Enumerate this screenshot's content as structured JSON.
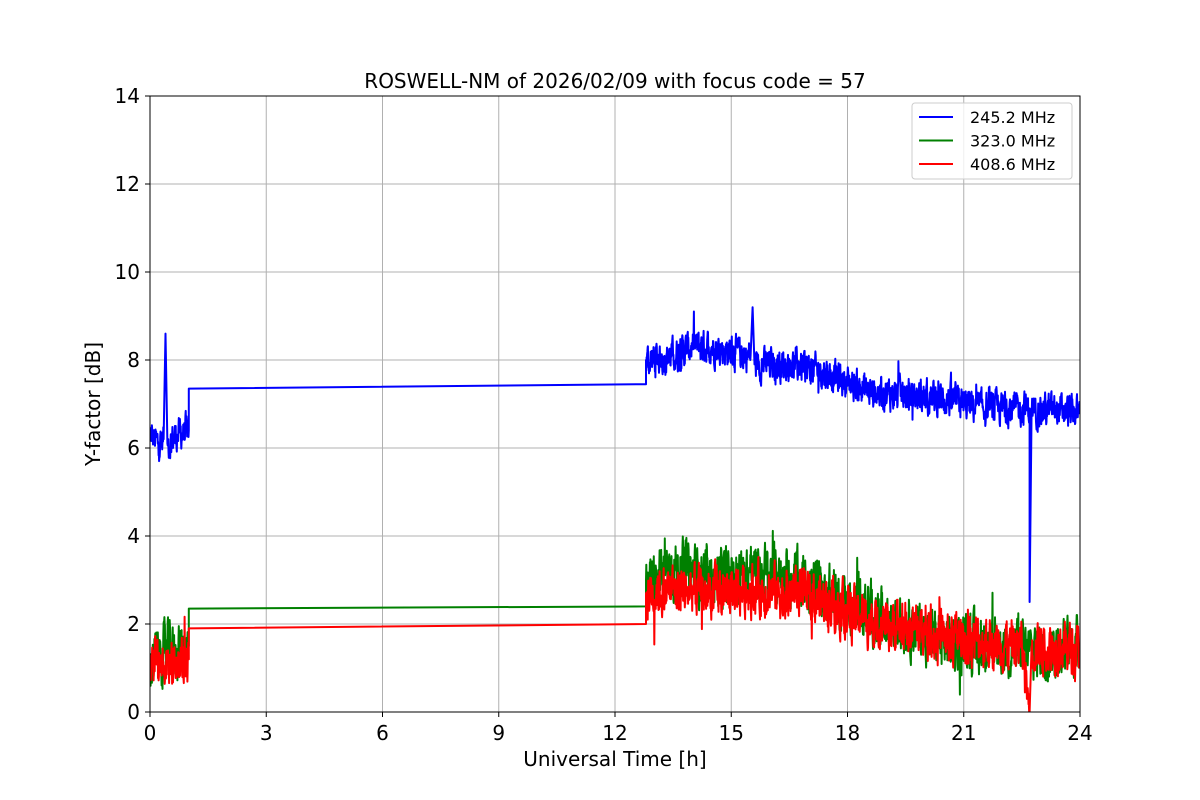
{
  "chart_data": {
    "type": "line",
    "title": "ROSWELL-NM of 2026/02/09 with focus code = 57",
    "xlabel": "Universal Time [h]",
    "ylabel": "Y-factor [dB]",
    "xlim": [
      0,
      24
    ],
    "ylim": [
      0,
      14
    ],
    "xticks": [
      0,
      3,
      6,
      9,
      12,
      15,
      18,
      21,
      24
    ],
    "yticks": [
      0,
      2,
      4,
      6,
      8,
      10,
      12,
      14
    ],
    "grid": true,
    "legend_position": "top-right",
    "series": [
      {
        "name": "245.2 MHz",
        "color": "#0000ff",
        "noise_amplitude": 0.3,
        "points": [
          [
            0,
            6.3
          ],
          [
            0.2,
            6.1
          ],
          [
            0.35,
            6.2
          ],
          [
            0.4,
            8.6
          ],
          [
            0.45,
            6.1
          ],
          [
            0.7,
            6.3
          ],
          [
            1.0,
            6.4
          ],
          [
            1.0,
            7.35
          ],
          [
            12.8,
            7.45
          ],
          [
            12.8,
            8.0
          ],
          [
            13.5,
            8.1
          ],
          [
            14.0,
            8.3
          ],
          [
            14.5,
            8.3
          ],
          [
            15.5,
            8.1
          ],
          [
            15.55,
            9.2
          ],
          [
            15.6,
            7.9
          ],
          [
            16.5,
            7.9
          ],
          [
            17.5,
            7.7
          ],
          [
            18.5,
            7.3
          ],
          [
            19.5,
            7.2
          ],
          [
            20.5,
            7.1
          ],
          [
            21.5,
            6.9
          ],
          [
            22.3,
            6.9
          ],
          [
            22.7,
            6.9
          ],
          [
            22.7,
            2.5
          ],
          [
            22.75,
            6.9
          ],
          [
            24,
            6.8
          ]
        ]
      },
      {
        "name": "323.0 MHz",
        "color": "#008000",
        "noise_amplitude": 0.5,
        "points": [
          [
            0,
            1.2
          ],
          [
            0.5,
            1.4
          ],
          [
            1.0,
            1.5
          ],
          [
            1.0,
            2.35
          ],
          [
            12.8,
            2.4
          ],
          [
            12.8,
            3.0
          ],
          [
            13.5,
            3.3
          ],
          [
            14.5,
            3.0
          ],
          [
            15.5,
            3.2
          ],
          [
            16.5,
            3.1
          ],
          [
            17.5,
            2.7
          ],
          [
            18.5,
            2.3
          ],
          [
            19.5,
            2.0
          ],
          [
            20.5,
            1.6
          ],
          [
            21.5,
            1.5
          ],
          [
            22.5,
            1.4
          ],
          [
            23.5,
            1.4
          ],
          [
            24,
            1.5
          ]
        ]
      },
      {
        "name": "408.6 MHz",
        "color": "#ff0000",
        "noise_amplitude": 0.45,
        "points": [
          [
            0,
            1.3
          ],
          [
            0.5,
            1.1
          ],
          [
            1.0,
            1.2
          ],
          [
            1.0,
            1.9
          ],
          [
            12.8,
            2.0
          ],
          [
            12.8,
            2.7
          ],
          [
            13.5,
            2.8
          ],
          [
            14.5,
            2.7
          ],
          [
            15.5,
            2.8
          ],
          [
            16.5,
            2.7
          ],
          [
            17.5,
            2.5
          ],
          [
            18.5,
            2.1
          ],
          [
            19.5,
            1.9
          ],
          [
            20.5,
            1.7
          ],
          [
            21.5,
            1.6
          ],
          [
            22.5,
            1.5
          ],
          [
            22.7,
            0.0
          ],
          [
            22.75,
            1.5
          ],
          [
            23.5,
            1.5
          ],
          [
            24,
            1.4
          ]
        ]
      }
    ]
  }
}
